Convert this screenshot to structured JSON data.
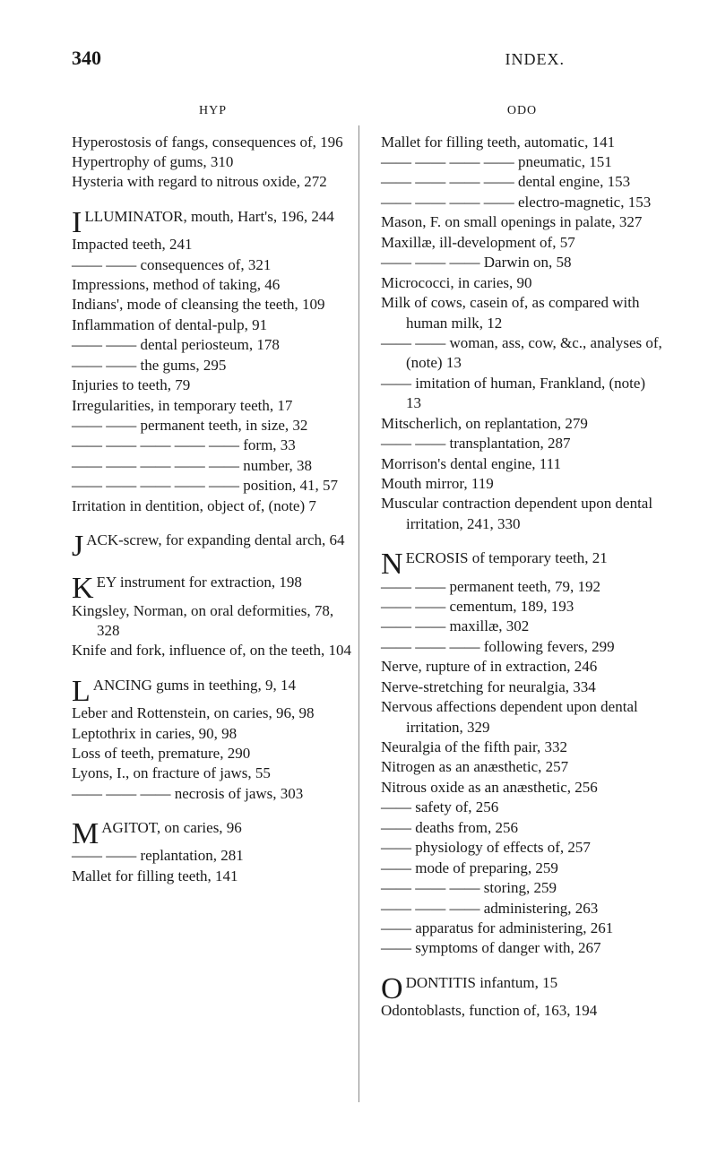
{
  "page_number": "340",
  "running_head": "INDEX.",
  "left_column": {
    "header": "HYP",
    "entries": [
      {
        "t": "Hyperostosis of fangs, consequences of, 196"
      },
      {
        "t": "Hypertrophy of gums, 310"
      },
      {
        "t": "Hysteria with regard to nitrous oxide, 272"
      },
      {
        "spacer": true
      },
      {
        "drop": "I",
        "t": "LLUMINATOR, mouth, Hart's, 196, 244"
      },
      {
        "t": "Impacted teeth, 241"
      },
      {
        "t": "—— —— consequences of, 321"
      },
      {
        "t": "Impressions, method of taking, 46"
      },
      {
        "t": "Indians', mode of cleansing the teeth, 109"
      },
      {
        "t": "Inflammation of dental-pulp, 91"
      },
      {
        "t": "—— —— dental periosteum, 178"
      },
      {
        "t": "—— —— the gums, 295"
      },
      {
        "t": "Injuries to teeth, 79"
      },
      {
        "t": "Irregularities, in temporary teeth, 17"
      },
      {
        "t": "—— —— permanent teeth, in size, 32"
      },
      {
        "t": "—— —— —— —— —— form, 33"
      },
      {
        "t": "—— —— —— —— —— number, 38"
      },
      {
        "t": "—— —— —— —— —— position, 41, 57"
      },
      {
        "t": "Irritation in dentition, object of, (note) 7"
      },
      {
        "spacer": true
      },
      {
        "drop": "J",
        "t": "ACK-screw, for expanding dental arch, 64"
      },
      {
        "spacer": true
      },
      {
        "drop": "K",
        "t": "EY instrument for extraction, 198"
      },
      {
        "t": "Kingsley, Norman, on oral deformities, 78, 328"
      },
      {
        "t": "Knife and fork, influence of, on the teeth, 104"
      },
      {
        "spacer": true
      },
      {
        "drop": "L",
        "t": "ANCING gums in teething, 9, 14"
      },
      {
        "t": "Leber and Rottenstein, on caries, 96, 98"
      },
      {
        "t": "Leptothrix in caries, 90, 98"
      },
      {
        "t": "Loss of teeth, premature, 290"
      },
      {
        "t": "Lyons, I., on fracture of jaws, 55"
      },
      {
        "t": "—— —— —— necrosis of jaws, 303"
      },
      {
        "spacer": true
      },
      {
        "drop": "M",
        "t": "AGITOT, on caries, 96"
      },
      {
        "t": "     —— —— replantation, 281"
      },
      {
        "t": "Mallet for filling teeth, 141"
      }
    ]
  },
  "right_column": {
    "header": "ODO",
    "entries": [
      {
        "t": "Mallet for filling teeth, automatic, 141"
      },
      {
        "t": "—— —— —— —— pneumatic, 151"
      },
      {
        "t": "—— —— —— —— dental engine, 153"
      },
      {
        "t": "—— —— —— —— electro-magnetic, 153"
      },
      {
        "t": "Mason, F. on small openings in palate, 327"
      },
      {
        "t": "Maxillæ, ill-development of, 57"
      },
      {
        "t": "—— —— —— Darwin on, 58"
      },
      {
        "t": "Micrococci, in caries, 90"
      },
      {
        "t": "Milk of cows, casein of, as compared with human milk, 12"
      },
      {
        "t": "—— —— woman, ass, cow, &c., analyses of, (note) 13"
      },
      {
        "t": "—— imitation of human, Frankland, (note) 13"
      },
      {
        "t": "Mitscherlich, on replantation, 279"
      },
      {
        "t": "—— —— transplantation, 287"
      },
      {
        "t": "Morrison's dental engine, 111"
      },
      {
        "t": "Mouth mirror, 119"
      },
      {
        "t": "Muscular contraction dependent upon dental irritation, 241, 330"
      },
      {
        "spacer": true
      },
      {
        "drop": "N",
        "t": "ECROSIS of temporary teeth, 21"
      },
      {
        "t": "—— —— permanent teeth, 79, 192"
      },
      {
        "t": "—— —— cementum, 189, 193"
      },
      {
        "t": "—— —— maxillæ, 302"
      },
      {
        "t": "—— —— —— following fevers, 299"
      },
      {
        "t": "Nerve, rupture of in extraction, 246"
      },
      {
        "t": "Nerve-stretching for neuralgia, 334"
      },
      {
        "t": "Nervous affections dependent upon dental irritation, 329"
      },
      {
        "t": "Neuralgia of the fifth pair, 332"
      },
      {
        "t": "Nitrogen as an anæsthetic, 257"
      },
      {
        "t": "Nitrous oxide as an anæsthetic, 256"
      },
      {
        "t": "—— safety of, 256"
      },
      {
        "t": "—— deaths from, 256"
      },
      {
        "t": "—— physiology of effects of, 257"
      },
      {
        "t": "—— mode of preparing, 259"
      },
      {
        "t": "—— —— —— storing, 259"
      },
      {
        "t": "—— —— —— administering, 263"
      },
      {
        "t": "—— apparatus for administering, 261"
      },
      {
        "t": "—— symptoms of danger with, 267"
      },
      {
        "spacer": true
      },
      {
        "drop": "O",
        "t": "DONTITIS infantum, 15"
      },
      {
        "t": "Odontoblasts, function of, 163, 194"
      }
    ]
  }
}
